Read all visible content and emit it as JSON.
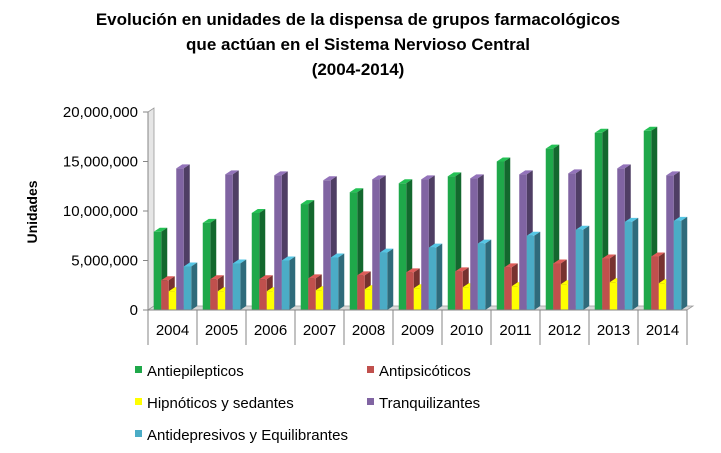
{
  "chart_data": {
    "type": "bar",
    "title_lines": [
      "Evolución en unidades de la dispensa de grupos farmacológicos",
      "que actúan en el Sistema Nervioso Central",
      "(2004-2014)"
    ],
    "xlabel": "",
    "ylabel": "Unidades",
    "ylim": [
      0,
      20000000
    ],
    "yticks": [
      0,
      5000000,
      10000000,
      15000000,
      20000000
    ],
    "ytick_labels": [
      "0",
      "5,000,000",
      "10,000,000",
      "15,000,000",
      "20,000,000"
    ],
    "grid": false,
    "legend_position": "bottom",
    "categories": [
      "2004",
      "2005",
      "2006",
      "2007",
      "2008",
      "2009",
      "2010",
      "2011",
      "2012",
      "2013",
      "2014"
    ],
    "series": [
      {
        "name": "Antiepilepticos",
        "color": "#1fa84a",
        "values": [
          7900000,
          8800000,
          9800000,
          10700000,
          11900000,
          12800000,
          13500000,
          15000000,
          16300000,
          17900000,
          18100000
        ]
      },
      {
        "name": "Antipsicóticos",
        "color": "#c0504d",
        "values": [
          3000000,
          3100000,
          3100000,
          3200000,
          3500000,
          3800000,
          3900000,
          4300000,
          4700000,
          5200000,
          5400000
        ]
      },
      {
        "name": "Hipnóticos y sedantes",
        "color": "#ffff00",
        "values": [
          1900000,
          1900000,
          1900000,
          2000000,
          2100000,
          2200000,
          2300000,
          2400000,
          2600000,
          2800000,
          2700000
        ]
      },
      {
        "name": "Tranquilizantes",
        "color": "#8064a2",
        "values": [
          14300000,
          13700000,
          13600000,
          13100000,
          13200000,
          13200000,
          13300000,
          13700000,
          13800000,
          14300000,
          13600000
        ]
      },
      {
        "name": "Antidepresivos y Equilibrantes",
        "color": "#4bacc6",
        "values": [
          4400000,
          4700000,
          5000000,
          5300000,
          5800000,
          6300000,
          6700000,
          7500000,
          8100000,
          8900000,
          9000000
        ]
      }
    ]
  }
}
